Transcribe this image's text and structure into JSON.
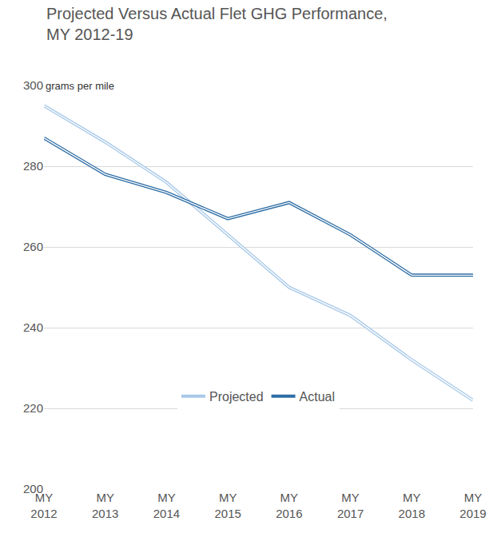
{
  "chart_data": {
    "type": "line",
    "title": "Projected Versus Actual Flet GHG Performance, MY 2012-19",
    "ylabel": "grams per mile",
    "categories": [
      "MY 2012",
      "MY 2013",
      "MY 2014",
      "MY 2015",
      "MY 2016",
      "MY 2017",
      "MY 2018",
      "MY 2019"
    ],
    "series": [
      {
        "name": "Projected",
        "color": "#a9c9e8",
        "values": [
          295,
          286,
          276,
          263,
          250,
          243,
          232,
          222
        ]
      },
      {
        "name": "Actual",
        "color": "#2f6ea5",
        "values": [
          287,
          278,
          273.5,
          267,
          271,
          263,
          253,
          253
        ]
      }
    ],
    "ylim": [
      200,
      300
    ],
    "yticks": [
      200,
      220,
      240,
      260,
      280,
      300
    ],
    "grid": true,
    "legend": "bottom"
  }
}
